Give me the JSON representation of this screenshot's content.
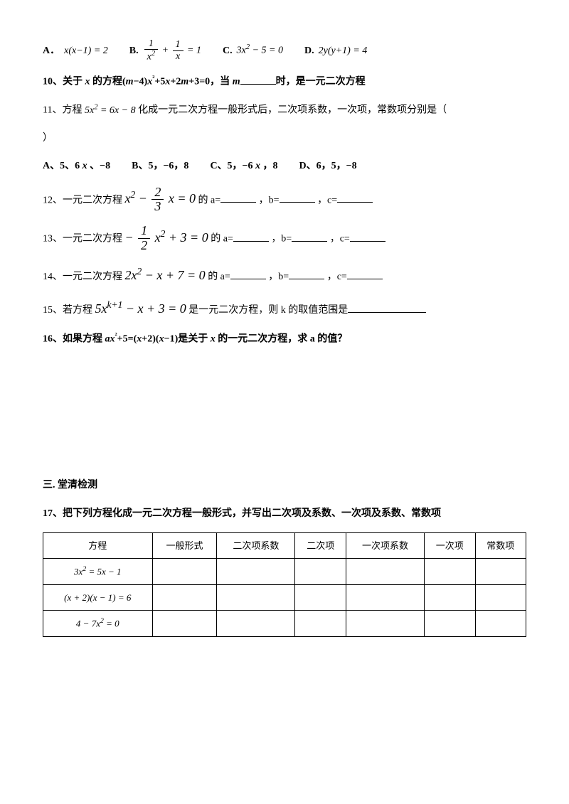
{
  "q9": {
    "A_label": "A．",
    "A_expr": "x(x−1) = 2",
    "B_label": "B.",
    "C_label": "C.",
    "C_expr": "3x² − 5 = 0",
    "D_label": "D.",
    "D_expr": "2y(y+1) = 4"
  },
  "q10": {
    "prefix": "10、关于 ",
    "x": "x",
    "mid1": " 的方程(",
    "m1": "m",
    "mid2": "−4)",
    "x2": "x",
    "sq": "²",
    "mid3": "+5",
    "x3": "x",
    "mid4": "+2",
    "m2": "m",
    "mid5": "+3=0，当 ",
    "m3": "m",
    "suffix": "时，是一元二次方程"
  },
  "q11": {
    "line1a": "11、方程",
    "expr": "5x² = 6x − 8",
    "line1b": "化成一元二次方程一般形式后，二次项系数，一次项，常数项分别是（",
    "line2": "）",
    "A": "A、5、6 x 、−8",
    "B": "B、5，−6，8",
    "C": "C、5，−6 x ，8",
    "D": "D、6，5，−8"
  },
  "q12": {
    "pre": "12、一元二次方程 ",
    "post": " 的 a=",
    "b": "，b=",
    "c": "，c="
  },
  "q13": {
    "pre": "13、一元二次方程 ",
    "post": " 的 a=",
    "b": "，b=",
    "c": "，c="
  },
  "q14": {
    "pre": "14、一元二次方程 ",
    "expr": "2x² − x + 7 = 0",
    "post": " 的 a=",
    "b": "，b=",
    "c": "，c="
  },
  "q15": {
    "pre": "15、若方程 ",
    "post": " 是一元二次方程，则 k 的取值范围是"
  },
  "q16": {
    "a": "16、如果方程 ",
    "ax": "ax",
    "sq": "²",
    "b": "+5=(",
    "x1": "x",
    "c": "+2)(",
    "x2": "x",
    "d": "−1)是关于 ",
    "x3": "x",
    "e": " 的一元二次方程，求 a 的值？"
  },
  "section": "三. 堂清检测",
  "q17": "17、把下列方程化成一元二次方程一般形式，并写出二次项及系数、一次项及系数、常数项",
  "table": {
    "headers": [
      "方程",
      "一般形式",
      "二次项系数",
      "二次项",
      "一次项系数",
      "一次项",
      "常数项"
    ],
    "rows": [
      {
        "eq": "3x² = 5x − 1"
      },
      {
        "eq": "(x + 2)(x − 1) = 6"
      },
      {
        "eq": "4 − 7x² = 0"
      }
    ]
  },
  "frac": {
    "one": "1",
    "x2": "x²",
    "x": "x",
    "two": "2",
    "three": "3",
    "neg1": "1"
  }
}
